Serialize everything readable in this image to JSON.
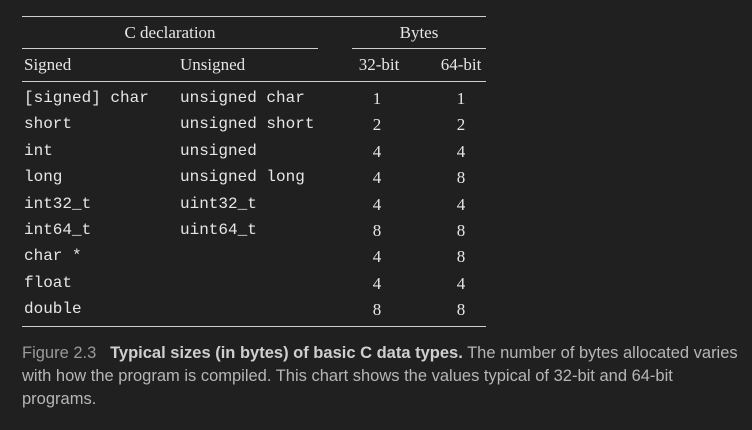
{
  "table": {
    "group_headers": {
      "c_declaration": "C declaration",
      "bytes": "Bytes"
    },
    "columns": {
      "signed": "Signed",
      "unsigned": "Unsigned",
      "bit32": "32-bit",
      "bit64": "64-bit"
    },
    "rows": [
      {
        "signed": "[signed] char",
        "unsigned": "unsigned char",
        "b32": "1",
        "b64": "1"
      },
      {
        "signed": "short",
        "unsigned": "unsigned short",
        "b32": "2",
        "b64": "2"
      },
      {
        "signed": "int",
        "unsigned": "unsigned",
        "b32": "4",
        "b64": "4"
      },
      {
        "signed": "long",
        "unsigned": "unsigned long",
        "b32": "4",
        "b64": "8"
      },
      {
        "signed": "int32_t",
        "unsigned": "uint32_t",
        "b32": "4",
        "b64": "4"
      },
      {
        "signed": "int64_t",
        "unsigned": "uint64_t",
        "b32": "8",
        "b64": "8"
      },
      {
        "signed": "char *",
        "unsigned": "",
        "b32": "4",
        "b64": "8"
      },
      {
        "signed": "float",
        "unsigned": "",
        "b32": "4",
        "b64": "4"
      },
      {
        "signed": "double",
        "unsigned": "",
        "b32": "8",
        "b64": "8"
      }
    ]
  },
  "caption": {
    "figure_label": "Figure 2.3",
    "title": "Typical sizes (in bytes) of basic C data types.",
    "text": "The number of bytes allocated varies with how the program is compiled. This chart shows the values typical of 32-bit and 64-bit programs."
  }
}
